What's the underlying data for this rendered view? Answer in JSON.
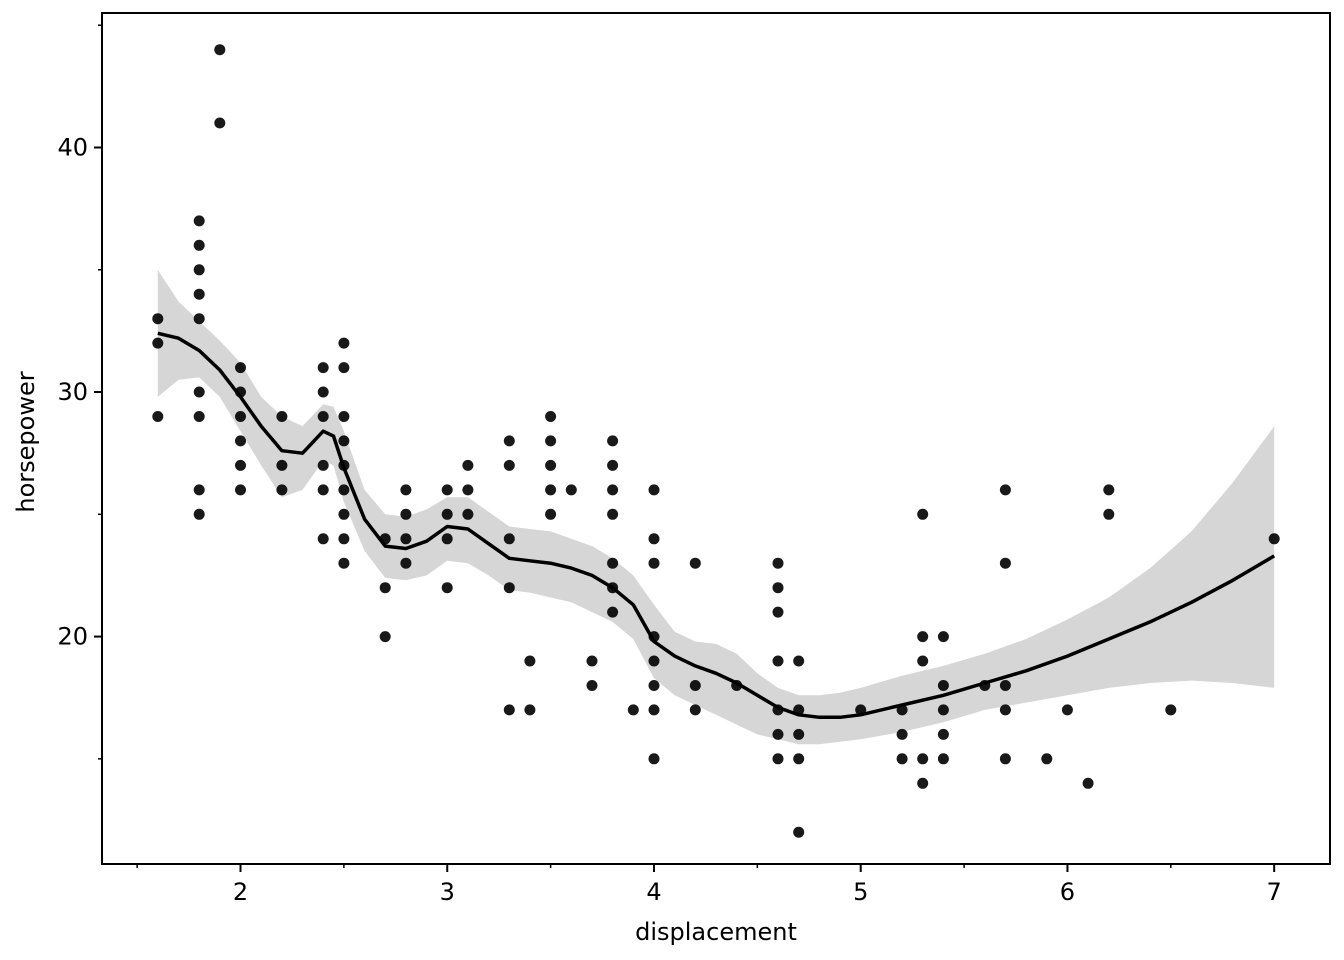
{
  "chart_data": {
    "type": "scatter",
    "xlabel": "displacement",
    "ylabel": "horsepower",
    "xlim": [
      1.33,
      7.27
    ],
    "ylim": [
      10.7,
      45.5
    ],
    "x_ticks": [
      2,
      3,
      4,
      5,
      6,
      7
    ],
    "y_ticks": [
      20,
      30,
      40
    ],
    "x_minor_ticks": [
      1.5,
      2.5,
      3.5,
      4.5,
      5.5,
      6.5
    ],
    "y_minor_ticks": [
      15,
      25,
      35,
      45
    ],
    "grid": false,
    "colors": {
      "points": "#000000",
      "line": "#000000",
      "band": "#d6d6d6"
    },
    "points": [
      [
        1.6,
        33
      ],
      [
        1.6,
        32
      ],
      [
        1.6,
        29
      ],
      [
        1.8,
        37
      ],
      [
        1.8,
        36
      ],
      [
        1.8,
        35
      ],
      [
        1.8,
        34
      ],
      [
        1.8,
        33
      ],
      [
        1.8,
        30
      ],
      [
        1.8,
        29
      ],
      [
        1.8,
        26
      ],
      [
        1.8,
        25
      ],
      [
        1.9,
        44
      ],
      [
        1.9,
        41
      ],
      [
        2.0,
        31
      ],
      [
        2.0,
        30
      ],
      [
        2.0,
        29
      ],
      [
        2.0,
        28
      ],
      [
        2.0,
        27
      ],
      [
        2.0,
        26
      ],
      [
        2.2,
        29
      ],
      [
        2.2,
        27
      ],
      [
        2.2,
        26
      ],
      [
        2.4,
        31
      ],
      [
        2.4,
        30
      ],
      [
        2.4,
        29
      ],
      [
        2.4,
        27
      ],
      [
        2.4,
        26
      ],
      [
        2.4,
        24
      ],
      [
        2.5,
        32
      ],
      [
        2.5,
        31
      ],
      [
        2.5,
        29
      ],
      [
        2.5,
        28
      ],
      [
        2.5,
        27
      ],
      [
        2.5,
        26
      ],
      [
        2.5,
        25
      ],
      [
        2.5,
        24
      ],
      [
        2.5,
        23
      ],
      [
        2.7,
        24
      ],
      [
        2.7,
        22
      ],
      [
        2.7,
        20
      ],
      [
        2.8,
        26
      ],
      [
        2.8,
        25
      ],
      [
        2.8,
        24
      ],
      [
        2.8,
        23
      ],
      [
        3.0,
        26
      ],
      [
        3.0,
        25
      ],
      [
        3.0,
        24
      ],
      [
        3.0,
        22
      ],
      [
        3.1,
        27
      ],
      [
        3.1,
        26
      ],
      [
        3.1,
        25
      ],
      [
        3.3,
        28
      ],
      [
        3.3,
        27
      ],
      [
        3.3,
        24
      ],
      [
        3.3,
        22
      ],
      [
        3.3,
        17
      ],
      [
        3.4,
        19
      ],
      [
        3.4,
        17
      ],
      [
        3.5,
        29
      ],
      [
        3.5,
        28
      ],
      [
        3.5,
        27
      ],
      [
        3.5,
        26
      ],
      [
        3.5,
        25
      ],
      [
        3.6,
        26
      ],
      [
        3.7,
        19
      ],
      [
        3.7,
        18
      ],
      [
        3.8,
        28
      ],
      [
        3.8,
        27
      ],
      [
        3.8,
        26
      ],
      [
        3.8,
        25
      ],
      [
        3.8,
        23
      ],
      [
        3.8,
        22
      ],
      [
        3.8,
        21
      ],
      [
        3.9,
        17
      ],
      [
        4.0,
        26
      ],
      [
        4.0,
        24
      ],
      [
        4.0,
        23
      ],
      [
        4.0,
        20
      ],
      [
        4.0,
        19
      ],
      [
        4.0,
        18
      ],
      [
        4.0,
        17
      ],
      [
        4.0,
        15
      ],
      [
        4.2,
        23
      ],
      [
        4.2,
        18
      ],
      [
        4.2,
        17
      ],
      [
        4.4,
        18
      ],
      [
        4.6,
        23
      ],
      [
        4.6,
        22
      ],
      [
        4.6,
        21
      ],
      [
        4.6,
        19
      ],
      [
        4.6,
        17
      ],
      [
        4.6,
        16
      ],
      [
        4.6,
        15
      ],
      [
        4.7,
        19
      ],
      [
        4.7,
        17
      ],
      [
        4.7,
        16
      ],
      [
        4.7,
        15
      ],
      [
        4.7,
        12
      ],
      [
        5.0,
        17
      ],
      [
        5.2,
        17
      ],
      [
        5.2,
        16
      ],
      [
        5.2,
        15
      ],
      [
        5.3,
        25
      ],
      [
        5.3,
        20
      ],
      [
        5.3,
        19
      ],
      [
        5.3,
        15
      ],
      [
        5.3,
        14
      ],
      [
        5.4,
        20
      ],
      [
        5.4,
        18
      ],
      [
        5.4,
        17
      ],
      [
        5.4,
        16
      ],
      [
        5.4,
        15
      ],
      [
        5.6,
        18
      ],
      [
        5.7,
        26
      ],
      [
        5.7,
        23
      ],
      [
        5.7,
        18
      ],
      [
        5.7,
        17
      ],
      [
        5.7,
        15
      ],
      [
        5.9,
        15
      ],
      [
        6.0,
        17
      ],
      [
        6.1,
        14
      ],
      [
        6.2,
        26
      ],
      [
        6.2,
        25
      ],
      [
        6.5,
        17
      ],
      [
        7.0,
        24
      ]
    ],
    "smooth_line": {
      "x": [
        1.6,
        1.7,
        1.8,
        1.9,
        2.0,
        2.1,
        2.2,
        2.3,
        2.4,
        2.45,
        2.5,
        2.6,
        2.7,
        2.8,
        2.9,
        3.0,
        3.1,
        3.2,
        3.3,
        3.4,
        3.5,
        3.6,
        3.7,
        3.8,
        3.9,
        4.0,
        4.1,
        4.2,
        4.3,
        4.4,
        4.5,
        4.6,
        4.7,
        4.8,
        4.9,
        5.0,
        5.2,
        5.4,
        5.6,
        5.8,
        6.0,
        6.2,
        6.4,
        6.6,
        6.8,
        7.0
      ],
      "y": [
        32.4,
        32.2,
        31.7,
        30.9,
        29.8,
        28.6,
        27.6,
        27.5,
        28.4,
        28.2,
        26.9,
        24.8,
        23.7,
        23.6,
        23.9,
        24.5,
        24.4,
        23.8,
        23.2,
        23.1,
        23.0,
        22.8,
        22.5,
        22.0,
        21.3,
        19.8,
        19.2,
        18.8,
        18.5,
        18.1,
        17.6,
        17.1,
        16.8,
        16.7,
        16.7,
        16.8,
        17.2,
        17.6,
        18.1,
        18.6,
        19.2,
        19.9,
        20.6,
        21.4,
        22.3,
        23.3
      ]
    },
    "band_upper": [
      35.0,
      33.7,
      32.9,
      32.1,
      31.2,
      29.8,
      29.0,
      28.6,
      29.5,
      29.4,
      28.4,
      26.0,
      25.0,
      24.9,
      25.2,
      25.7,
      25.7,
      25.1,
      24.5,
      24.4,
      24.3,
      24.0,
      23.7,
      23.2,
      22.5,
      21.3,
      20.2,
      19.8,
      19.7,
      19.3,
      18.5,
      17.9,
      17.6,
      17.6,
      17.7,
      17.9,
      18.4,
      18.8,
      19.3,
      19.9,
      20.7,
      21.6,
      22.8,
      24.3,
      26.3,
      28.6
    ],
    "band_lower": [
      29.8,
      30.5,
      30.6,
      29.8,
      28.4,
      27.0,
      25.7,
      26.0,
      27.2,
      27.0,
      25.5,
      23.5,
      22.4,
      22.3,
      22.5,
      23.1,
      23.0,
      22.5,
      21.9,
      21.8,
      21.6,
      21.4,
      21.0,
      20.6,
      19.9,
      18.3,
      17.6,
      17.2,
      16.8,
      16.4,
      16.0,
      15.8,
      15.6,
      15.6,
      15.7,
      15.8,
      16.1,
      16.5,
      17.0,
      17.3,
      17.6,
      17.9,
      18.1,
      18.2,
      18.1,
      17.9
    ]
  }
}
